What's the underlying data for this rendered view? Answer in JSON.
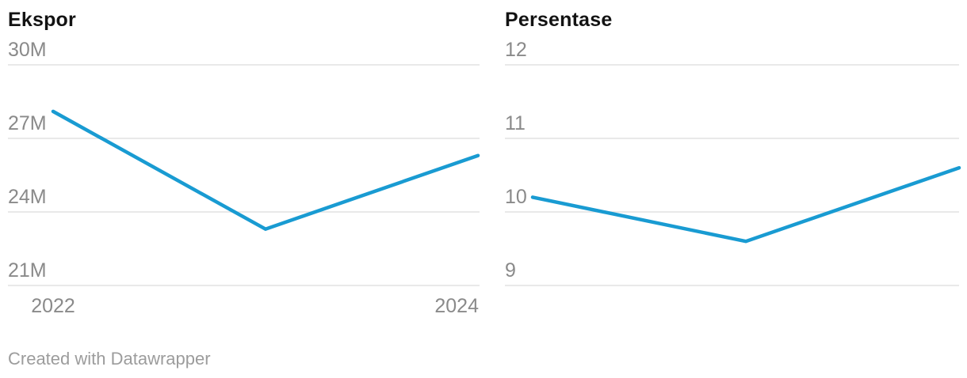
{
  "colors": {
    "line": "#199bd2",
    "grid": "#e2e2e2",
    "tick_label": "#8a8a8a",
    "title": "#131313",
    "credit": "#9c9c9c",
    "background": "#ffffff"
  },
  "footer": {
    "credit_label": "Created with Datawrapper"
  },
  "chart_data": [
    {
      "type": "line",
      "title": "Ekspor",
      "x": [
        2022,
        2023,
        2024
      ],
      "values": [
        28.1,
        23.3,
        26.3
      ],
      "unit": "M",
      "xlim": [
        2022,
        2024
      ],
      "ylim": [
        21,
        30
      ],
      "grid": true,
      "legend": "none",
      "y_ticks": [
        {
          "value": 30,
          "label": "30M"
        },
        {
          "value": 27,
          "label": "27M"
        },
        {
          "value": 24,
          "label": "24M"
        },
        {
          "value": 21,
          "label": "21M"
        }
      ],
      "x_tick_labels": [
        {
          "value": 2022,
          "label": "2022"
        },
        {
          "value": 2024,
          "label": "2024"
        }
      ]
    },
    {
      "type": "line",
      "title": "Persentase",
      "x": [
        2022,
        2023,
        2024
      ],
      "values": [
        10.2,
        9.6,
        10.6
      ],
      "unit": "",
      "xlim": [
        2022,
        2024
      ],
      "ylim": [
        9,
        12
      ],
      "grid": true,
      "legend": "none",
      "y_ticks": [
        {
          "value": 12,
          "label": "12"
        },
        {
          "value": 11,
          "label": "11"
        },
        {
          "value": 10,
          "label": "10"
        },
        {
          "value": 9,
          "label": "9"
        }
      ],
      "x_tick_labels": []
    }
  ]
}
